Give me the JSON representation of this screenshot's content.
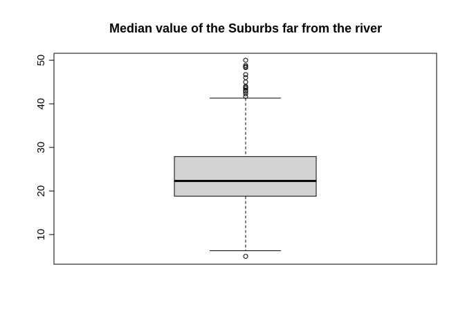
{
  "chart_data": {
    "type": "boxplot",
    "title": "Median value of the Suburbs far from the river",
    "xlabel": "",
    "ylabel": "",
    "ylim": [
      3.2,
      51.6
    ],
    "yticks": [
      10,
      20,
      30,
      40,
      50
    ],
    "grid": false,
    "box": {
      "lower_whisker": 6.3,
      "q1": 18.8,
      "median": 22.3,
      "q3": 27.9,
      "upper_whisker": 41.3,
      "box_fill": "#d3d3d3"
    },
    "outliers": [
      5.0,
      41.7,
      42.3,
      42.8,
      43.1,
      43.5,
      43.8,
      44.0,
      45.0,
      46.0,
      46.7,
      48.3,
      48.5,
      48.8,
      50.0
    ]
  }
}
